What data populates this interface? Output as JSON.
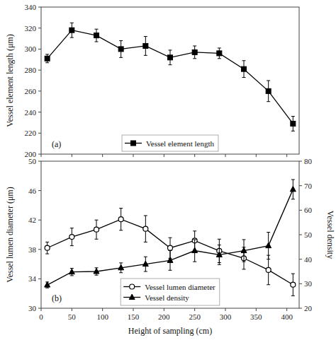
{
  "chart_data": [
    {
      "type": "line",
      "x": [
        10,
        50,
        90,
        130,
        170,
        210,
        250,
        290,
        330,
        370,
        410
      ],
      "series": [
        {
          "name": "Vessel element length",
          "color": "#000000",
          "marker": "square",
          "values": [
            291,
            318,
            313,
            300,
            303,
            292,
            297,
            296,
            281,
            260,
            229
          ],
          "errors": [
            4,
            7,
            6,
            8,
            9,
            7,
            6,
            5,
            8,
            10,
            7
          ]
        }
      ],
      "ylabel": "Vessel element length (μm)",
      "xlim": [
        0,
        420
      ],
      "ylim": [
        200,
        340
      ],
      "xticks": [
        0,
        50,
        100,
        150,
        200,
        250,
        300,
        350,
        400
      ],
      "yticks": [
        200,
        220,
        240,
        260,
        280,
        300,
        320,
        340
      ],
      "tick_labels": "y",
      "grid": false,
      "legend": "lower center",
      "annotations": [
        "(a)"
      ]
    },
    {
      "type": "line",
      "x": [
        10,
        50,
        90,
        130,
        170,
        210,
        250,
        290,
        330,
        370,
        410
      ],
      "series": [
        {
          "name": "Vessel lumen diameter",
          "color": "#000000",
          "marker": "circle-open",
          "values": [
            38.2,
            39.7,
            40.7,
            42.1,
            40.8,
            38.2,
            39.2,
            37.8,
            36.8,
            35.2,
            33.2
          ],
          "errors": [
            0.8,
            1.2,
            1.3,
            1.5,
            1.8,
            1.4,
            1.3,
            1.6,
            1.5,
            2.0,
            1.5
          ]
        },
        {
          "name": "Vessel density",
          "color": "#000000",
          "marker": "triangle",
          "axis": "y2",
          "values": [
            29.5,
            34.8,
            35.0,
            36.5,
            38.0,
            39.5,
            43.5,
            41.8,
            43.5,
            45.5,
            68.5
          ],
          "errors": [
            1.2,
            1.5,
            1.5,
            2.0,
            3.0,
            4.0,
            4.5,
            4.0,
            4.5,
            5.5,
            4.0
          ]
        }
      ],
      "xlabel": "Height of sampling (cm)",
      "ylabel": "Vessel lumen diameter (μm)",
      "y2label": "Vessel density",
      "xlim": [
        0,
        420
      ],
      "ylim": [
        30,
        50
      ],
      "y2lim": [
        20,
        80
      ],
      "xticks": [
        0,
        50,
        100,
        150,
        200,
        250,
        300,
        350,
        400
      ],
      "yticks": [
        30,
        34,
        38,
        42,
        46,
        50
      ],
      "y2ticks": [
        20,
        30,
        40,
        50,
        60,
        70,
        80
      ],
      "grid": false,
      "legend": "lower center",
      "annotations": [
        "(b)"
      ]
    }
  ]
}
